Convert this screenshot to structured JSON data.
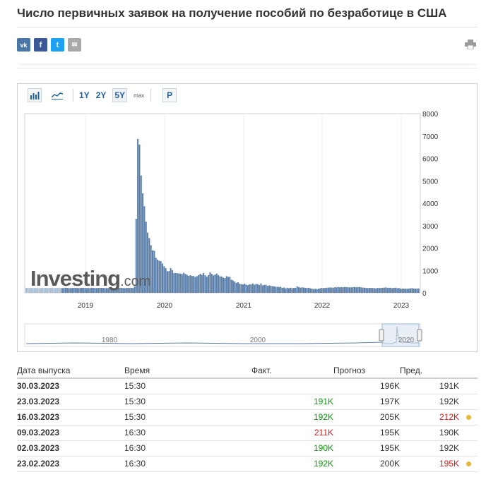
{
  "page": {
    "title": "Число первичных заявок на получение пособий по безработице в США"
  },
  "social": [
    {
      "label": "vk",
      "icon": "vk-icon",
      "color": "#4a76a8"
    },
    {
      "label": "f",
      "icon": "facebook-icon",
      "color": "#3b5998"
    },
    {
      "label": "t",
      "icon": "twitter-icon",
      "color": "#1da1f2"
    },
    {
      "label": "✉",
      "icon": "email-icon",
      "color": "#a9a9a9"
    }
  ],
  "toolbar": {
    "ranges": [
      "1Y",
      "2Y",
      "5Y",
      "max"
    ],
    "active_range": "5Y",
    "p_label": "P"
  },
  "chart_data": {
    "type": "bar",
    "title": "",
    "xlabel": "",
    "ylabel": "",
    "ylim": [
      0,
      8000
    ],
    "y_ticks": [
      "8000",
      "7000",
      "6000",
      "5000",
      "4000",
      "3000",
      "2000",
      "1000",
      "0"
    ],
    "x_ticks": [
      "2019",
      "2020",
      "2021",
      "2022",
      "2023"
    ],
    "navigator_ticks": [
      "1980",
      "2000",
      "2020"
    ],
    "bar_color": "#5b7fa8",
    "pre_range_color": "#a7bdd4",
    "values": [
      225,
      220,
      215,
      218,
      212,
      216,
      210,
      214,
      208,
      212,
      215,
      218,
      221,
      213,
      219,
      222,
      216,
      211,
      215,
      219,
      224,
      217,
      212,
      218,
      226,
      220,
      214,
      210,
      215,
      222,
      219,
      216,
      213,
      217,
      221,
      225,
      218,
      214,
      209,
      216,
      221,
      218,
      215,
      212,
      219,
      224,
      220,
      216,
      213,
      208,
      214,
      219,
      223,
      217,
      212,
      216,
      220,
      225,
      218,
      213,
      209,
      215,
      219,
      216,
      221,
      214,
      282,
      3307,
      6867,
      6615,
      5237,
      4442,
      3867,
      3176,
      2687,
      2446,
      2123,
      1897,
      1877,
      1566,
      1482,
      1435,
      1416,
      1307,
      1186,
      1104,
      963,
      971,
      1106,
      1011,
      881,
      884,
      873,
      870,
      860,
      837,
      898,
      840,
      804,
      758,
      787,
      751,
      751,
      709,
      742,
      787,
      853,
      803,
      885,
      787,
      719,
      787,
      914,
      847,
      779,
      812,
      861,
      793,
      736,
      730,
      684,
      658,
      745,
      712,
      719,
      586,
      553,
      498,
      444,
      473,
      406,
      385,
      376,
      412,
      364,
      340,
      381,
      373,
      419,
      362,
      400,
      386,
      348,
      419,
      335,
      351,
      362,
      310,
      329,
      312,
      293,
      290,
      268,
      269,
      258,
      269,
      220,
      238,
      199,
      227,
      206,
      230,
      207,
      220,
      223,
      290,
      260,
      230,
      245,
      232,
      223,
      214,
      227,
      202,
      187,
      166,
      184,
      166,
      185,
      200,
      219,
      211,
      218,
      229,
      231,
      239,
      235,
      229,
      251,
      244,
      261,
      248,
      256,
      250,
      262,
      253,
      248,
      243,
      245,
      250,
      262,
      248,
      252,
      261,
      245,
      232,
      228,
      218,
      213,
      218,
      220,
      214,
      210,
      199,
      222,
      212,
      218,
      225,
      230,
      241,
      228,
      222,
      226,
      208,
      220,
      230,
      206,
      214,
      191,
      186,
      190,
      186,
      183,
      192,
      200,
      211,
      192,
      190,
      191,
      196
    ],
    "first_in_range_index": 22
  },
  "table": {
    "headers": {
      "date": "Дата выпуска",
      "time": "Время",
      "actual": "Факт.",
      "forecast": "Прогноз",
      "previous": "Пред."
    },
    "rows": [
      {
        "date": "30.03.2023",
        "time": "15:30",
        "actual": "",
        "actual_color": "",
        "forecast": "196K",
        "previous": "191K",
        "previous_color": "",
        "dot": false
      },
      {
        "date": "23.03.2023",
        "time": "15:30",
        "actual": "191K",
        "actual_color": "green",
        "forecast": "197K",
        "previous": "192K",
        "previous_color": "",
        "dot": false
      },
      {
        "date": "16.03.2023",
        "time": "15:30",
        "actual": "192K",
        "actual_color": "green",
        "forecast": "205K",
        "previous": "212K",
        "previous_color": "red",
        "dot": true
      },
      {
        "date": "09.03.2023",
        "time": "16:30",
        "actual": "211K",
        "actual_color": "red",
        "forecast": "195K",
        "previous": "190K",
        "previous_color": "",
        "dot": false
      },
      {
        "date": "02.03.2023",
        "time": "16:30",
        "actual": "190K",
        "actual_color": "green",
        "forecast": "195K",
        "previous": "192K",
        "previous_color": "",
        "dot": false
      },
      {
        "date": "23.02.2023",
        "time": "16:30",
        "actual": "192K",
        "actual_color": "green",
        "forecast": "200K",
        "previous": "195K",
        "previous_color": "red",
        "dot": true
      }
    ]
  },
  "logo": {
    "main": "Investing",
    "suffix": ".com"
  }
}
